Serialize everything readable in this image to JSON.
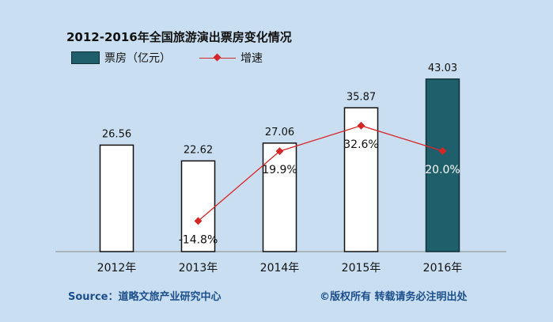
{
  "title": "2012-2016年全国旅游演出票房变化情况",
  "legend": {
    "bar_label": "票房（亿元）",
    "line_label": "增速"
  },
  "footer": {
    "source": "Source：道略文旅产业研究中心",
    "copyright": "©版权所有  转载请务必注明出处"
  },
  "colors": {
    "background": "#c9dff1",
    "bar_outline": "#111111",
    "bar_highlight": "#1f5f6c",
    "line": "#d62728",
    "footer_text": "#1c4f8c"
  },
  "chart_data": {
    "type": "bar",
    "categories": [
      "2012年",
      "2013年",
      "2014年",
      "2015年",
      "2016年"
    ],
    "series": [
      {
        "name": "票房（亿元）",
        "kind": "bar",
        "values": [
          26.56,
          22.62,
          27.06,
          35.87,
          43.03
        ],
        "labels": [
          "26.56",
          "22.62",
          "27.06",
          "35.87",
          "43.03"
        ],
        "highlight_index": 4
      },
      {
        "name": "增速",
        "kind": "line",
        "values": [
          null,
          -14.8,
          19.9,
          32.6,
          20.0
        ],
        "labels": [
          "",
          "-14.8%",
          "19.9%",
          "32.6%",
          "20.0%"
        ],
        "unit": "%"
      }
    ],
    "xlabel": "",
    "ylabel": "",
    "ylim_bar": [
      0,
      45
    ],
    "ylim_line": [
      -30,
      40
    ],
    "grid": false,
    "legend_position": "top-left"
  }
}
